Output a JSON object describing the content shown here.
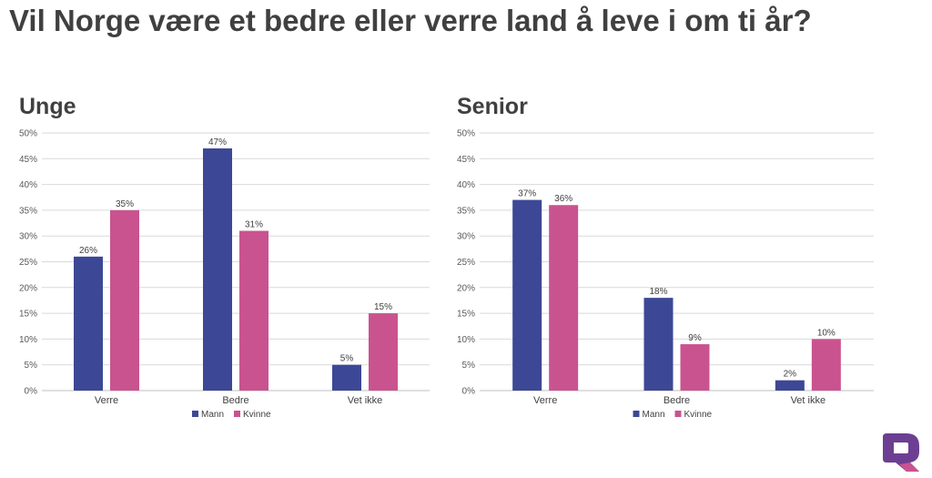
{
  "page": {
    "title": "Vil Norge være et bedre eller verre land å leve i om ti år?"
  },
  "colors": {
    "mann": "#3c4896",
    "kvinne": "#c9538f",
    "grid": "#d9d9d9",
    "axis": "#bfbfbf",
    "logo_purple": "#6c3f93",
    "logo_pink": "#c9538f"
  },
  "chart_data": [
    {
      "type": "bar",
      "panel_title": "Unge",
      "categories": [
        "Verre",
        "Bedre",
        "Vet ikke"
      ],
      "series": [
        {
          "name": "Mann",
          "values": [
            26,
            47,
            5
          ],
          "labels": [
            "26%",
            "47%",
            "5%"
          ]
        },
        {
          "name": "Kvinne",
          "values": [
            35,
            31,
            15
          ],
          "labels": [
            "35%",
            "31%",
            "15%"
          ]
        }
      ],
      "ylim": [
        0,
        50
      ],
      "yticks": [
        "0%",
        "5%",
        "10%",
        "15%",
        "20%",
        "25%",
        "30%",
        "35%",
        "40%",
        "45%",
        "50%"
      ],
      "grid": true,
      "legend_position": "bottom"
    },
    {
      "type": "bar",
      "panel_title": "Senior",
      "categories": [
        "Verre",
        "Bedre",
        "Vet ikke"
      ],
      "series": [
        {
          "name": "Mann",
          "values": [
            37,
            18,
            2
          ],
          "labels": [
            "37%",
            "18%",
            "2%"
          ]
        },
        {
          "name": "Kvinne",
          "values": [
            36,
            9,
            10
          ],
          "labels": [
            "36%",
            "9%",
            "10%"
          ]
        }
      ],
      "ylim": [
        0,
        50
      ],
      "yticks": [
        "0%",
        "5%",
        "10%",
        "15%",
        "20%",
        "25%",
        "30%",
        "35%",
        "40%",
        "45%",
        "50%"
      ],
      "grid": true,
      "legend_position": "bottom"
    }
  ]
}
